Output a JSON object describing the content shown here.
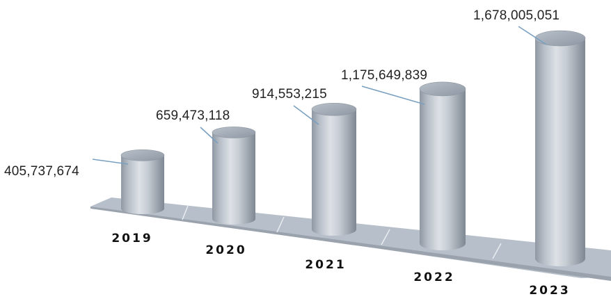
{
  "chart_data": {
    "type": "bar",
    "style": "3d-cylinder",
    "categories": [
      "2019",
      "2020",
      "2021",
      "2022",
      "2023"
    ],
    "values": [
      405737674,
      659473118,
      914553215,
      1175649839,
      1678005051
    ],
    "value_labels": [
      "405,737,674",
      "659,473,118",
      "914,553,215",
      "1,175,649,839",
      "1,678,005,051"
    ],
    "title": "",
    "xlabel": "",
    "ylabel": "",
    "ylim": [
      0,
      1800000000
    ],
    "grid": false,
    "legend": "none"
  },
  "colors": {
    "bar_body": "#c3c9d0",
    "bar_top": "#9aa4b0",
    "floor": "#b7c0ca",
    "leader_line": "#7aa0c0"
  }
}
